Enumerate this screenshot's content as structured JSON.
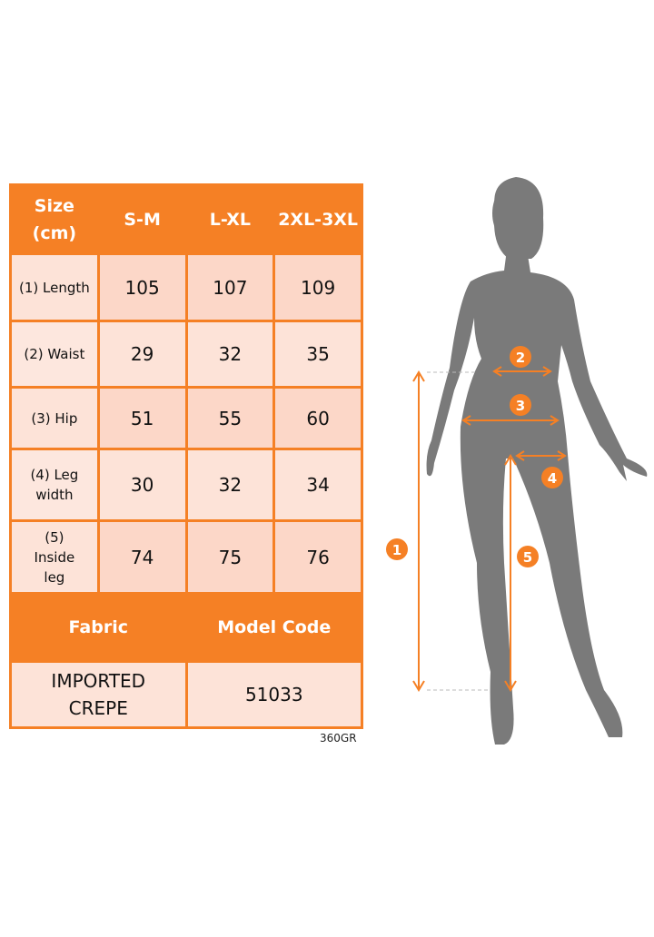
{
  "table": {
    "headers": [
      "Size (cm)",
      "S-M",
      "L-XL",
      "2XL-3XL"
    ],
    "rows": [
      {
        "label": "(1) Length",
        "values": [
          "105",
          "107",
          "109"
        ]
      },
      {
        "label": "(2) Waist",
        "values": [
          "29",
          "32",
          "35"
        ]
      },
      {
        "label": "(3) Hip",
        "values": [
          "51",
          "55",
          "60"
        ]
      },
      {
        "label": "(4) Leg width",
        "values": [
          "30",
          "32",
          "34"
        ]
      },
      {
        "label": "(5) Inside leg",
        "values": [
          "74",
          "75",
          "76"
        ]
      }
    ],
    "fabric_header": "Fabric",
    "model_code_header": "Model Code",
    "fabric": "IMPORTED CREPE",
    "model_code": "51033"
  },
  "weight": "360GR",
  "figure": {
    "markers": [
      "1",
      "2",
      "3",
      "4",
      "5"
    ],
    "accent": "#F58025",
    "silhouette": "#7A7A7A"
  }
}
